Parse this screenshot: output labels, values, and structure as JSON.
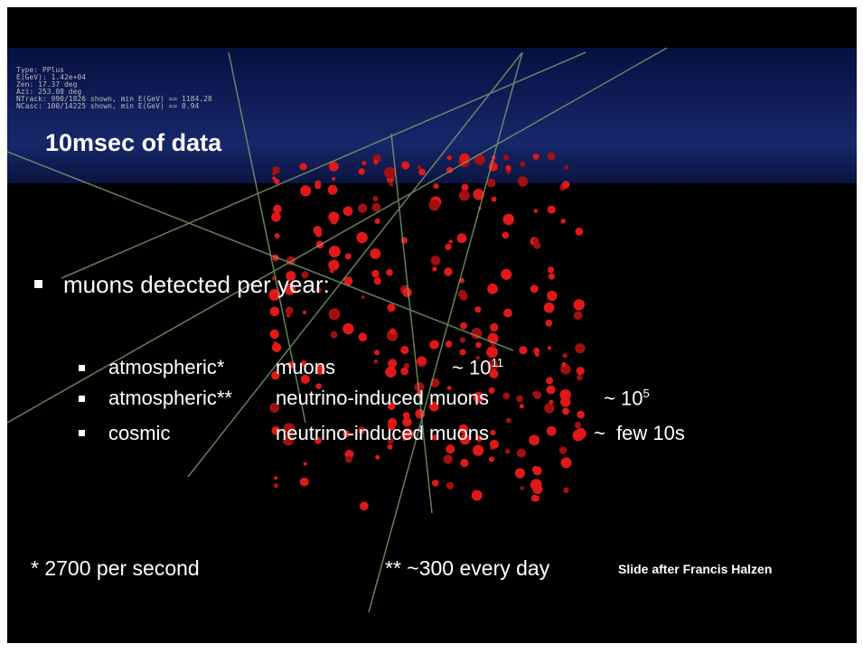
{
  "overlay": [
    "Type: PPlus",
    "E(GeV): 1.42e+04",
    "Zen: 17.37 deg",
    "Azi: 253.08 deg",
    "NTrack: 990/1826 shown, min E(GeV) == 1184.28",
    "NCasc: 100/14225 shown, min E(GeV) == 0.94"
  ],
  "title": "10msec of data",
  "bullet": "muons detected per year:",
  "rows": [
    {
      "source": "atmospheric*",
      "kind": "muons",
      "rate": "~ 10",
      "exponent": "11"
    },
    {
      "source": "atmospheric**",
      "kind": "neutrino-induced muons",
      "rate": "~ 10",
      "exponent": "5"
    },
    {
      "source": "cosmic",
      "kind": "neutrino-induced muons",
      "rate": "~  few 10s"
    }
  ],
  "footnotes": [
    "* 2700 per second",
    "** ~300 every day"
  ],
  "credit": "Slide after Francis Halzen"
}
